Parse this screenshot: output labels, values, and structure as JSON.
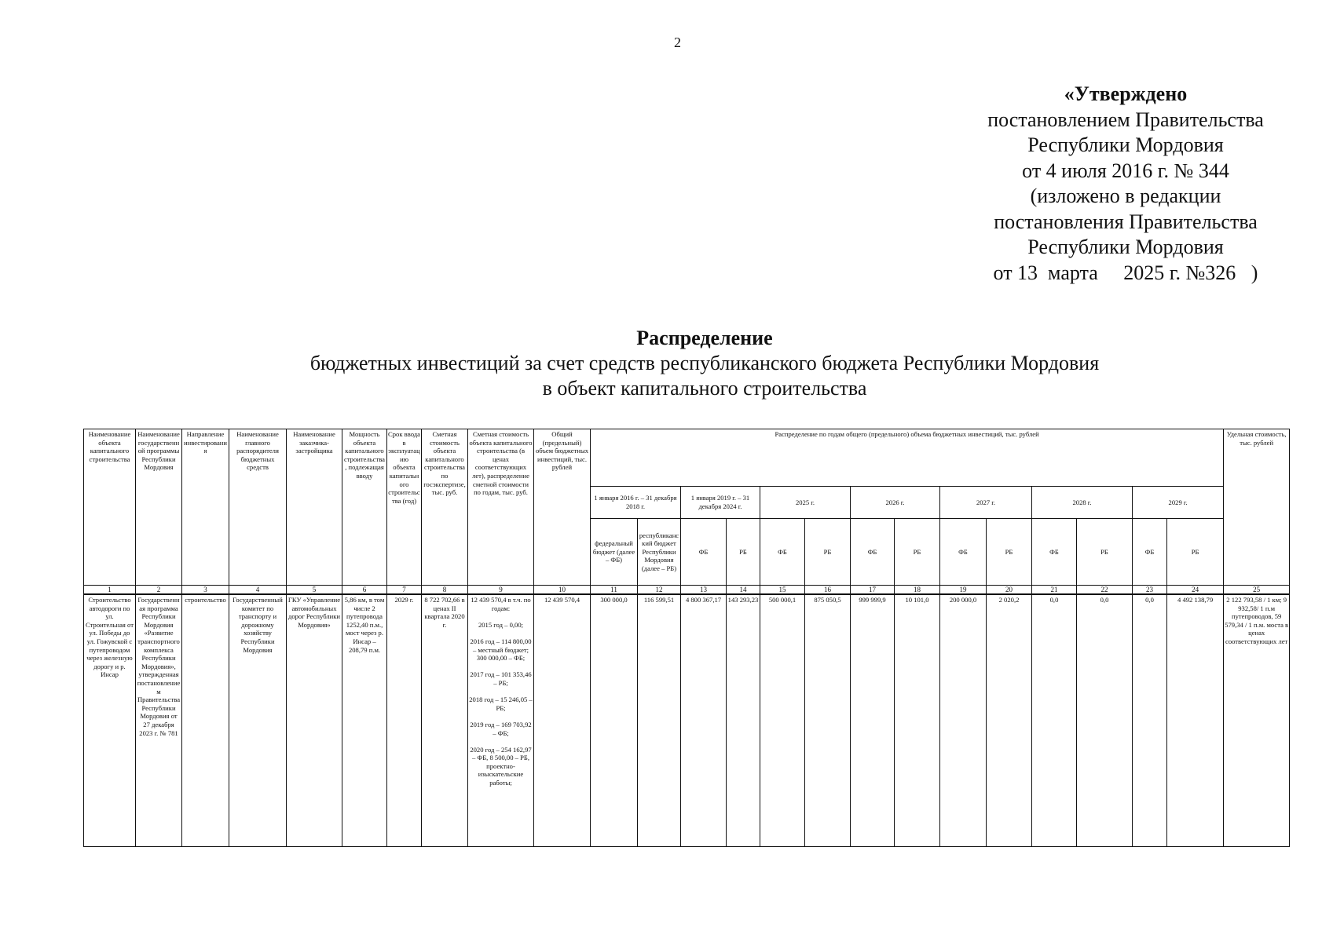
{
  "page_number": "2",
  "approval": {
    "line1": "«Утверждено",
    "line2": "постановлением Правительства",
    "line3": "Республики Мордовия",
    "line4": "от 4 июля 2016 г. № 344",
    "line5": "(изложено в редакции",
    "line6": "постановления Правительства",
    "line7": "Республики Мордовия",
    "line8": "от 13  марта     2025 г. №326   )"
  },
  "title": {
    "heading": "Распределение",
    "line2": "бюджетных инвестиций за счет средств республиканского бюджета Республики Мордовия",
    "line3": "в объект капитального строительства"
  },
  "table": {
    "headers": {
      "c1": "Наименование объекта капитального строительства",
      "c2": "Наименование государственной программы Республики Мордовия",
      "c3": "Направление инвестирования",
      "c4": "Наименование главного распорядителя бюджетных средств",
      "c5": "Наименование заказчика-застройщика",
      "c6": "Мощность объекта капитального строительства, подлежащая вводу",
      "c7": "Срок ввода в эксплуатацию объекта капитального строительства (год)",
      "c8": "Сметная стоимость объекта капитального строительства по госэкспертизе, тыс. руб.",
      "c9": "Сметная стоимость объекта капитального строительства (в ценах соответствующих лет), распределение сметной стоимости по годам, тыс. руб.",
      "c10": "Общий (предельный) объем бюджетных инвестиций, тыс. рублей",
      "distribution": "Распределение по годам общего (предельного) объема бюджетных инвестиций, тыс. рублей",
      "c25": "Удельная стоимость, тыс. рублей",
      "periods": [
        "1 января 2016 г. – 31 декабря 2018 г.",
        "1 января 2019 г. – 31 декабря 2024 г.",
        "2025 г.",
        "2026 г.",
        "2027 г.",
        "2028 г.",
        "2029 г."
      ],
      "fb_full": "федеральный бюджет (далее – ФБ)",
      "rb_full": "республиканский бюджет Республики Мордовия (далее – РБ)",
      "fb": "ФБ",
      "rb": "РБ"
    },
    "column_numbers": [
      "1",
      "2",
      "3",
      "4",
      "5",
      "6",
      "7",
      "8",
      "9",
      "10",
      "11",
      "12",
      "13",
      "14",
      "15",
      "16",
      "17",
      "18",
      "19",
      "20",
      "21",
      "22",
      "23",
      "24",
      "25"
    ],
    "row": [
      "Строительство автодороги по ул. Строительная от ул. Победы до ул. Гожувской с путепроводом через железную дорогу и р. Инсар",
      "Государственная программа Республики Мордовия «Развитие транспортного комплекса Республики Мордовия», утвержденная постановлением Правительства Республики Мордовия от 27 декабря 2023 г. № 781",
      "строительство",
      "Государственный комитет по транспорту и дорожному хозяйству Республики Мордовия",
      "ГКУ «Управление автомобильных дорог Республики Мордовия»",
      "5,86 км, в том числе 2 путепровода 1252,40 п.м., мост через р. Инсар – 208,79 п.м.",
      "2029 г.",
      "8 722 702,66 в ценах II квартала 2020 г.",
      "12 439 570,4 в т.ч. по годам:\n\n2015 год – 0,00;\n\n2016 год – 114 800,00 – местный бюджет; 300 000,00 – ФБ;\n\n2017 год – 101 353,46 – РБ;\n\n2018 год – 15 246,05 – РБ;\n\n2019 год – 169 703,92 – ФБ;\n\n2020 год – 254 162,97 – ФБ, 8 500,00 – РБ, проектно-изыскательские работы;",
      "12 439 570,4",
      "300 000,0",
      "116 599,51",
      "4 800 367,17",
      "143 293,23",
      "500 000,1",
      "875 050,5",
      "999 999,9",
      "10 101,0",
      "200 000,0",
      "2 020,2",
      "0,0",
      "0,0",
      "0,0",
      "4 492 138,79",
      "2 122 793,58 / 1 км; 9 932,58/ 1 п.м путепроводов, 59 579,34 / 1 п.м. моста в ценах соответствующих лет"
    ]
  }
}
